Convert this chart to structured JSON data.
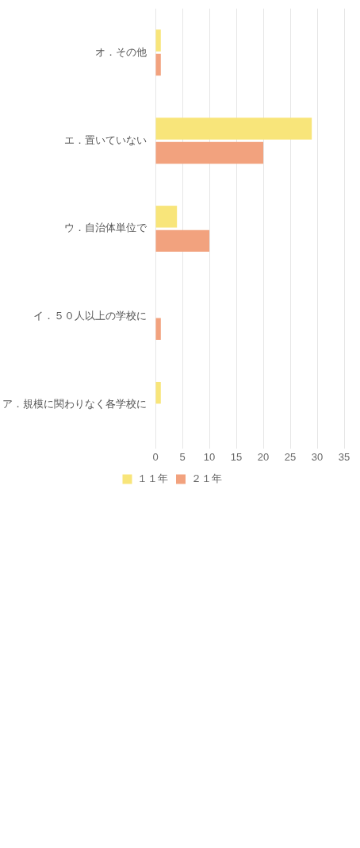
{
  "chart_data": {
    "type": "bar",
    "orientation": "horizontal",
    "categories": [
      "オ．その他",
      "エ．置いていない",
      "ウ．自治体単位で",
      "イ．５０人以上の学校に",
      "ア．規模に関わりなく各学校に"
    ],
    "series": [
      {
        "name": "１１年",
        "color": "#f8e57a",
        "values": [
          1,
          29,
          4,
          0,
          1
        ]
      },
      {
        "name": "２１年",
        "color": "#f2a27e",
        "values": [
          1,
          20,
          10,
          1,
          0
        ]
      }
    ],
    "xlim": [
      0,
      35
    ],
    "xticks": [
      0,
      5,
      10,
      15,
      20,
      25,
      30,
      35
    ],
    "grid": "x",
    "legend": "bottom"
  }
}
